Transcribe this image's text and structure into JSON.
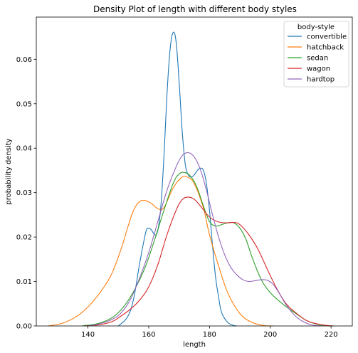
{
  "chart_data": {
    "type": "line",
    "title": "Density Plot of length with different body styles",
    "xlabel": "length",
    "ylabel": "probability density",
    "xlim": [
      123,
      227
    ],
    "ylim": [
      0,
      0.0695
    ],
    "xticks": [
      140,
      160,
      180,
      200,
      220
    ],
    "yticks": [
      0.0,
      0.01,
      0.02,
      0.03,
      0.04,
      0.05,
      0.06
    ],
    "ytick_labels": [
      "0.00",
      "0.01",
      "0.02",
      "0.03",
      "0.04",
      "0.05",
      "0.06"
    ],
    "grid": false,
    "legend": {
      "title": "body-style",
      "placement": "top-right"
    },
    "series": [
      {
        "name": "convertible",
        "color": "#1f77b4",
        "x": [
          150,
          153,
          155,
          157,
          159,
          160,
          161,
          162,
          163,
          164,
          165,
          166,
          167,
          168,
          169,
          170,
          171,
          172,
          173,
          174,
          175,
          176,
          177,
          178,
          179,
          180,
          181,
          182,
          183,
          184,
          186,
          188,
          189
        ],
        "y": [
          0.0,
          0.002,
          0.006,
          0.014,
          0.021,
          0.022,
          0.0215,
          0.0205,
          0.0215,
          0.027,
          0.038,
          0.052,
          0.062,
          0.066,
          0.064,
          0.055,
          0.044,
          0.0365,
          0.034,
          0.0335,
          0.034,
          0.035,
          0.0355,
          0.035,
          0.032,
          0.026,
          0.018,
          0.011,
          0.0065,
          0.003,
          0.0008,
          0.0001,
          0.0
        ]
      },
      {
        "name": "hatchback",
        "color": "#ff7f0e",
        "x": [
          127,
          132,
          137,
          141,
          145,
          148,
          151,
          153,
          155,
          157,
          159,
          161,
          163,
          165,
          168,
          171,
          173,
          175,
          178,
          180,
          183,
          186,
          190,
          194,
          198,
          201
        ],
        "y": [
          0.0,
          0.0007,
          0.0025,
          0.005,
          0.0085,
          0.012,
          0.0175,
          0.022,
          0.026,
          0.028,
          0.0282,
          0.0275,
          0.0264,
          0.0266,
          0.031,
          0.0335,
          0.0334,
          0.032,
          0.0265,
          0.0205,
          0.0135,
          0.0075,
          0.0028,
          0.0008,
          0.0001,
          0.0
        ]
      },
      {
        "name": "sedan",
        "color": "#2ca02c",
        "x": [
          138,
          143,
          147,
          150,
          153,
          156,
          159,
          162,
          165,
          168,
          170,
          172,
          174,
          176,
          178,
          180,
          182,
          184,
          186,
          188,
          190,
          192,
          194,
          197,
          200,
          204,
          208,
          212,
          216,
          220
        ],
        "y": [
          0.0,
          0.0005,
          0.0015,
          0.003,
          0.0055,
          0.009,
          0.0135,
          0.0195,
          0.026,
          0.032,
          0.0342,
          0.0345,
          0.0335,
          0.031,
          0.027,
          0.0235,
          0.0225,
          0.0228,
          0.0232,
          0.0232,
          0.022,
          0.0195,
          0.0155,
          0.0105,
          0.0075,
          0.005,
          0.003,
          0.0012,
          0.0003,
          0.0
        ]
      },
      {
        "name": "wagon",
        "color": "#d62728",
        "x": [
          139,
          144,
          148,
          151,
          154,
          157,
          160,
          163,
          166,
          169,
          171,
          173,
          175,
          177,
          180,
          183,
          186,
          188,
          190,
          193,
          196,
          199,
          202,
          205,
          208,
          212,
          216,
          219,
          221
        ],
        "y": [
          0.0,
          0.0003,
          0.001,
          0.0023,
          0.0038,
          0.0058,
          0.0088,
          0.0138,
          0.0205,
          0.026,
          0.0284,
          0.029,
          0.0285,
          0.027,
          0.0245,
          0.0234,
          0.0232,
          0.0233,
          0.0228,
          0.0205,
          0.0172,
          0.0128,
          0.0086,
          0.0052,
          0.0032,
          0.0012,
          0.0004,
          0.0001,
          0.0
        ]
      },
      {
        "name": "hardtop",
        "color": "#9467bd",
        "x": [
          140,
          144,
          148,
          151,
          154,
          157,
          160,
          163,
          166,
          169,
          171,
          173,
          175,
          177,
          179,
          181,
          183,
          185,
          187,
          189,
          191,
          193,
          195,
          197,
          199,
          201,
          203,
          205,
          208,
          211,
          214,
          217
        ],
        "y": [
          0.0,
          0.0005,
          0.0015,
          0.003,
          0.006,
          0.0108,
          0.0165,
          0.0235,
          0.0305,
          0.0358,
          0.0383,
          0.039,
          0.038,
          0.0352,
          0.0305,
          0.025,
          0.02,
          0.016,
          0.0132,
          0.0115,
          0.0104,
          0.01,
          0.0102,
          0.0104,
          0.0103,
          0.0093,
          0.0073,
          0.005,
          0.0024,
          0.0009,
          0.0002,
          0.0
        ]
      }
    ]
  }
}
